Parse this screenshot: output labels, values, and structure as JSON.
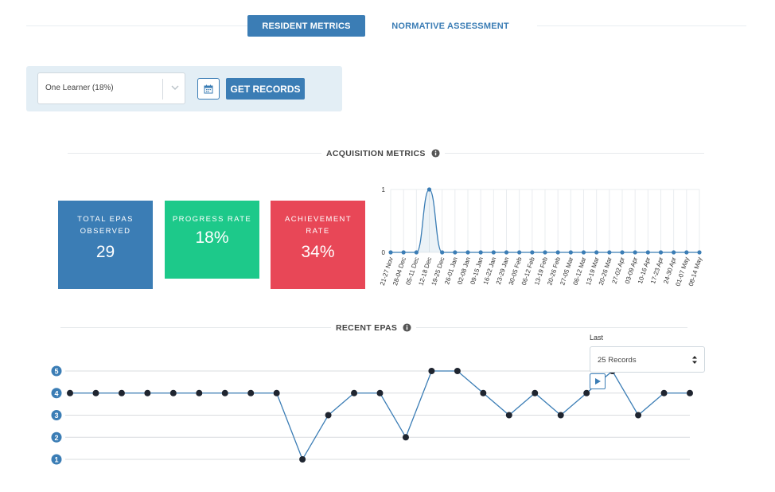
{
  "tabs": {
    "resident_metrics": "RESIDENT METRICS",
    "normative_assessment": "NORMATIVE ASSESSMENT"
  },
  "filter": {
    "learner_selected": "One Learner (18%)",
    "get_records_label": "GET RECORDS"
  },
  "acquisition": {
    "title": "ACQUISITION METRICS",
    "cards": {
      "total_epas_label": "TOTAL EPAS OBSERVED",
      "total_epas_value": "29",
      "progress_label": "PROGRESS RATE",
      "progress_value": "18%",
      "achievement_label": "ACHIEVEMENT RATE",
      "achievement_value": "34%"
    }
  },
  "recent": {
    "title": "RECENT EPAS",
    "last_label": "Last",
    "records_selected": "25 Records"
  },
  "colors": {
    "primary": "#3b7db5",
    "success": "#1dc98a",
    "danger": "#e84757",
    "panel_bg": "#e3eef5"
  },
  "chart_data": [
    {
      "type": "line",
      "x": [
        "21-27 Nov",
        "28-04 Dec",
        "05-11 Dec",
        "12-18 Dec",
        "19-25 Dec",
        "26-01 Jan",
        "02-08 Jan",
        "09-15 Jan",
        "16-22 Jan",
        "23-29 Jan",
        "30-05 Feb",
        "06-12 Feb",
        "13-19 Feb",
        "20-26 Feb",
        "27-05 Mar",
        "06-12 Mar",
        "13-19 Mar",
        "20-26 Mar",
        "27-02 Apr",
        "03-09 Apr",
        "10-16 Apr",
        "17-23 Apr",
        "24-30 Apr",
        "01-07 May",
        "08-14 May"
      ],
      "series": [
        {
          "values": [
            0,
            0,
            0,
            1,
            0,
            0,
            0,
            0,
            0,
            0,
            0,
            0,
            0,
            0,
            0,
            0,
            0,
            0,
            0,
            0,
            0,
            0,
            0,
            0,
            0
          ]
        }
      ],
      "ylim": [
        0,
        1
      ],
      "yticks": [
        0,
        1
      ],
      "grid": true
    },
    {
      "type": "line",
      "series": [
        {
          "values": [
            4,
            4,
            4,
            4,
            4,
            4,
            4,
            4,
            4,
            1,
            3,
            4,
            4,
            2,
            5,
            5,
            4,
            3,
            4,
            3,
            4,
            5,
            3,
            4,
            4
          ]
        }
      ],
      "ylim": [
        1,
        5
      ],
      "yticks": [
        1,
        2,
        3,
        4,
        5
      ],
      "grid": true
    }
  ]
}
